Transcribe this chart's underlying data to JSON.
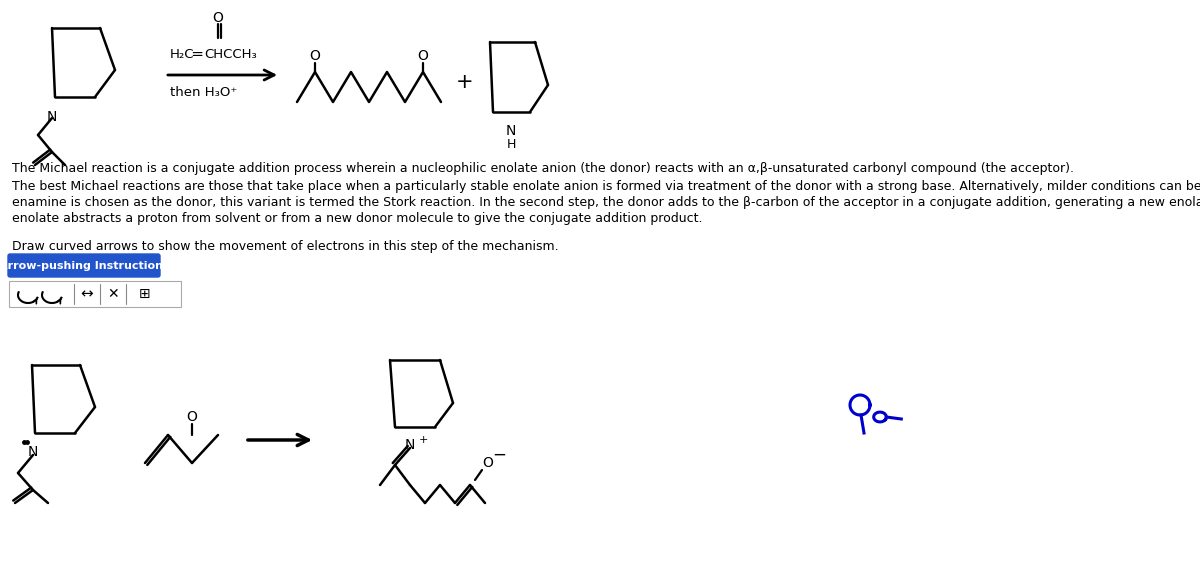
{
  "bg_color": "#ffffff",
  "text_color": "#000000",
  "blue_color": "#0000cc",
  "paragraph1": "The Michael reaction is a conjugate addition process wherein a nucleophilic enolate anion (the donor) reacts with an α,β-unsaturated carbonyl compound (the acceptor).",
  "paragraph2a": "The best Michael reactions are those that take place when a particularly stable enolate anion is formed via treatment of the donor with a strong base. Alternatively, milder conditions can be used if an",
  "paragraph2b": "enamine is chosen as the donor, this variant is termed the Stork reaction. In the second step, the donor adds to the β-carbon of the acceptor in a conjugate addition, generating a new enolate. The",
  "paragraph2c": "enolate abstracts a proton from solvent or from a new donor molecule to give the conjugate addition product.",
  "paragraph3": "Draw curved arrows to show the movement of electrons in this step of the mechanism.",
  "button_text": "Arrow-pushing Instructions",
  "button_color": "#2255cc",
  "reagent1": "H₂C═CHCCH₃",
  "reagent2": "then H₃O⁺"
}
